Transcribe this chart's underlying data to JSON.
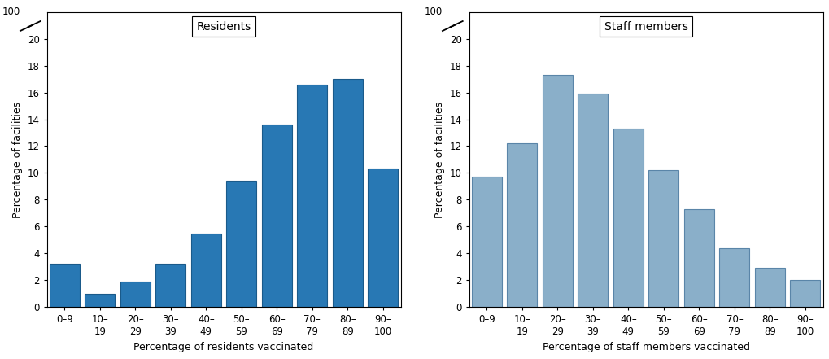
{
  "residents": {
    "values": [
      3.2,
      1.0,
      1.9,
      3.2,
      5.5,
      9.4,
      13.6,
      16.6,
      17.0,
      10.3
    ],
    "bar_color": "#2878b4",
    "bar_edgecolor": "#1a5a8a",
    "title": "Residents",
    "xlabel": "Percentage of residents vaccinated",
    "ylabel": "Percentage of facilities"
  },
  "staff": {
    "values": [
      9.7,
      12.2,
      17.3,
      15.9,
      13.3,
      10.2,
      7.3,
      4.4,
      2.9,
      2.0
    ],
    "bar_color": "#8aafc9",
    "bar_edgecolor": "#5a85a8",
    "title": "Staff members",
    "xlabel": "Percentage of staff members vaccinated",
    "ylabel": "Percentage of facilities"
  },
  "categories": [
    "0–9",
    "10–\n19",
    "20–\n29",
    "30–\n39",
    "40–\n49",
    "50–\n59",
    "60–\n69",
    "70–\n79",
    "80–\n89",
    "90–\n100"
  ],
  "ylim": [
    0,
    22
  ],
  "yticks": [
    0,
    2,
    4,
    6,
    8,
    10,
    12,
    14,
    16,
    18,
    20
  ],
  "axis_label_fontsize": 9,
  "tick_fontsize": 8.5,
  "title_fontsize": 10,
  "background_color": "#ffffff"
}
